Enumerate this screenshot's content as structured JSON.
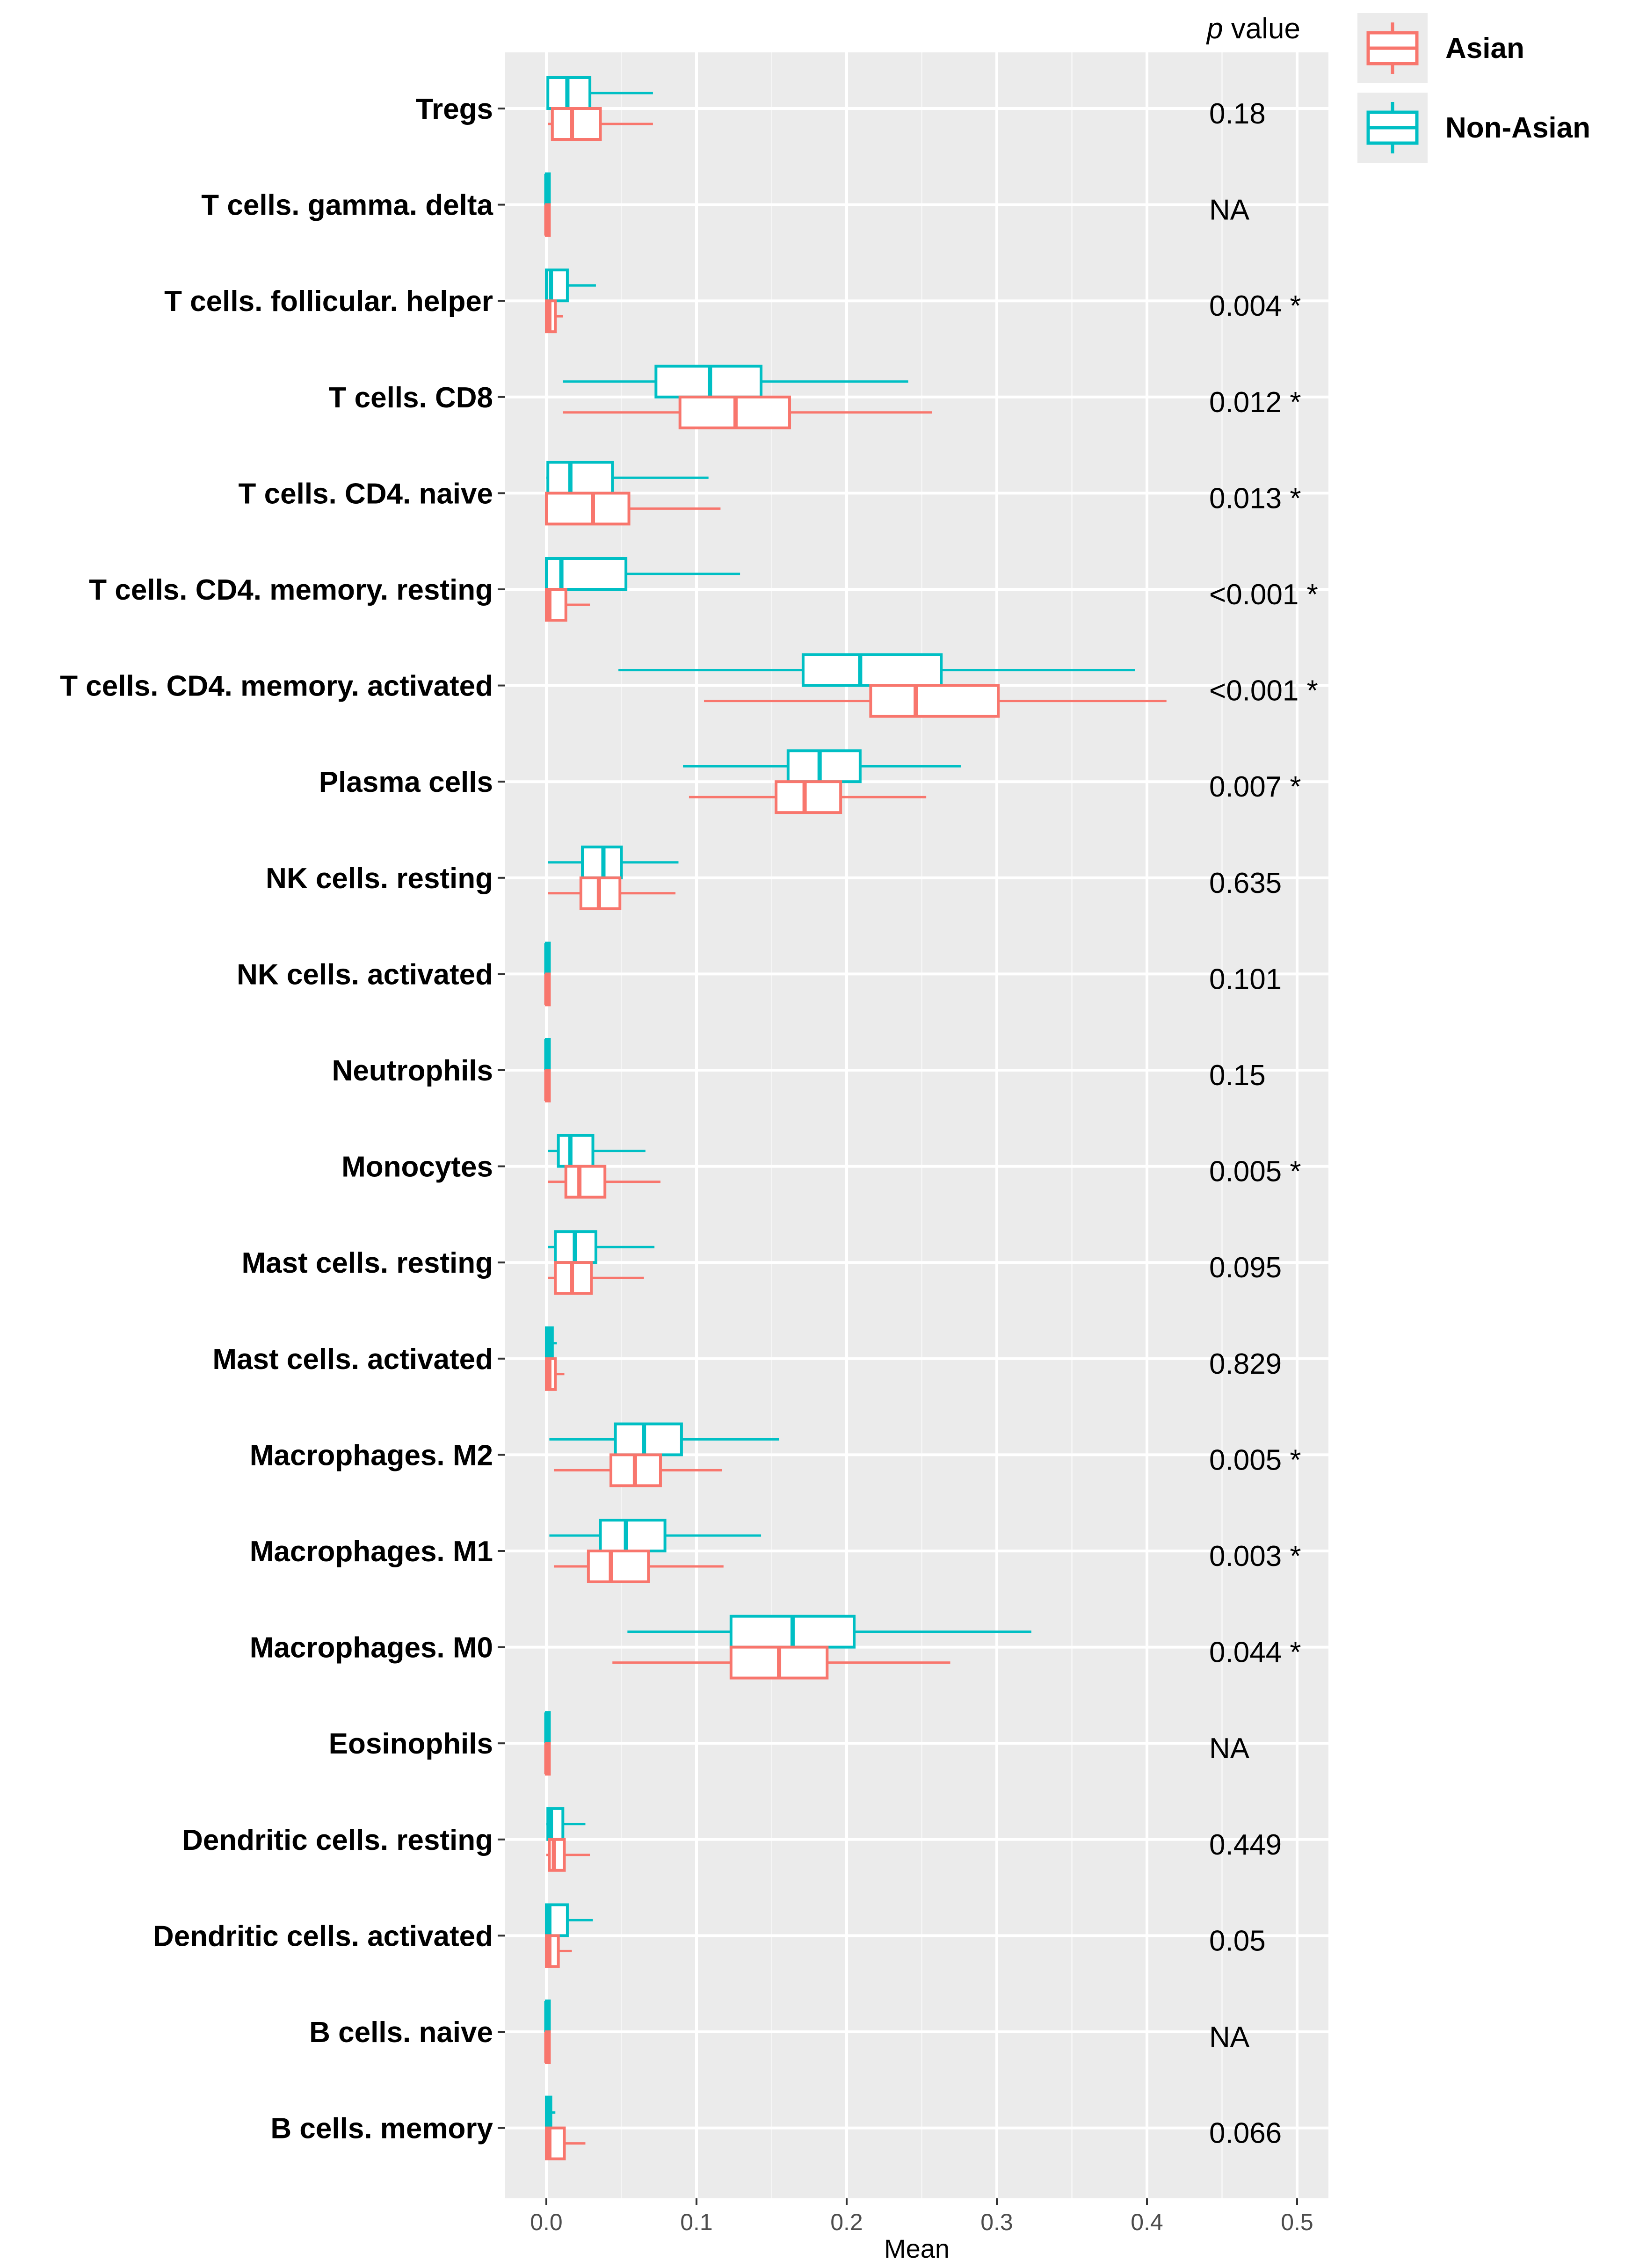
{
  "chart_data": {
    "type": "boxplot",
    "orientation": "horizontal",
    "xlabel": "Mean",
    "ylabel": "",
    "xlim": [
      -0.02,
      0.52
    ],
    "xticks": [
      0.0,
      0.1,
      0.2,
      0.3,
      0.4,
      0.5
    ],
    "xtick_labels": [
      "0.0",
      "0.1",
      "0.2",
      "0.3",
      "0.4",
      "0.5"
    ],
    "grid": true,
    "pvalue_header_italic": "p",
    "pvalue_header_rest": " value",
    "legend": {
      "position": "top-right",
      "entries": [
        {
          "name": "Asian",
          "color": "#F8766D"
        },
        {
          "name": "Non-Asian",
          "color": "#00BFC4"
        }
      ]
    },
    "series_colors": {
      "asian": "#F8766D",
      "nonasian": "#00BFC4"
    },
    "categories": [
      {
        "label": "Tregs",
        "pvalue": "0.18",
        "asian": [
          0.001,
          0.004,
          0.017,
          0.036,
          0.071
        ],
        "nonasian": [
          0.001,
          0.001,
          0.014,
          0.029,
          0.071
        ]
      },
      {
        "label": "T cells. gamma. delta",
        "pvalue": "NA",
        "asian": [
          0.0,
          0.0,
          0.0,
          0.002,
          0.002
        ],
        "nonasian": [
          0.0,
          0.0,
          0.0,
          0.002,
          0.002
        ]
      },
      {
        "label": "T cells. follicular. helper",
        "pvalue": "0.004 *",
        "asian": [
          0.0,
          0.0,
          0.002,
          0.006,
          0.011
        ],
        "nonasian": [
          0.0,
          0.0,
          0.003,
          0.014,
          0.033
        ]
      },
      {
        "label": "T cells. CD8",
        "pvalue": "0.012 *",
        "asian": [
          0.011,
          0.089,
          0.126,
          0.162,
          0.257
        ],
        "nonasian": [
          0.011,
          0.073,
          0.109,
          0.143,
          0.241
        ]
      },
      {
        "label": "T cells. CD4. naive",
        "pvalue": "0.013 *",
        "asian": [
          0.0,
          0.0,
          0.031,
          0.055,
          0.116
        ],
        "nonasian": [
          0.0,
          0.001,
          0.016,
          0.044,
          0.108
        ]
      },
      {
        "label": "T cells. CD4. memory. resting",
        "pvalue": "<0.001 *",
        "asian": [
          0.0,
          0.0,
          0.002,
          0.013,
          0.029
        ],
        "nonasian": [
          0.0,
          0.0,
          0.01,
          0.053,
          0.129
        ]
      },
      {
        "label": "T cells. CD4. memory. activated",
        "pvalue": "<0.001 *",
        "asian": [
          0.105,
          0.216,
          0.246,
          0.301,
          0.413
        ],
        "nonasian": [
          0.048,
          0.171,
          0.209,
          0.263,
          0.392
        ]
      },
      {
        "label": "Plasma cells",
        "pvalue": "0.007 *",
        "asian": [
          0.095,
          0.153,
          0.172,
          0.196,
          0.253
        ],
        "nonasian": [
          0.091,
          0.161,
          0.182,
          0.209,
          0.276
        ]
      },
      {
        "label": "NK cells. resting",
        "pvalue": "0.635",
        "asian": [
          0.001,
          0.023,
          0.035,
          0.049,
          0.086
        ],
        "nonasian": [
          0.001,
          0.024,
          0.038,
          0.05,
          0.088
        ]
      },
      {
        "label": "NK cells. activated",
        "pvalue": "0.101",
        "asian": [
          0.0,
          0.0,
          0.0,
          0.002,
          0.002
        ],
        "nonasian": [
          0.0,
          0.0,
          0.0,
          0.002,
          0.002
        ]
      },
      {
        "label": "Neutrophils",
        "pvalue": "0.15",
        "asian": [
          0.0,
          0.0,
          0.0,
          0.002,
          0.002
        ],
        "nonasian": [
          0.0,
          0.0,
          0.0,
          0.002,
          0.002
        ]
      },
      {
        "label": "Monocytes",
        "pvalue": "0.005 *",
        "asian": [
          0.001,
          0.013,
          0.022,
          0.039,
          0.076
        ],
        "nonasian": [
          0.001,
          0.008,
          0.016,
          0.031,
          0.066
        ]
      },
      {
        "label": "Mast cells. resting",
        "pvalue": "0.095",
        "asian": [
          0.001,
          0.006,
          0.017,
          0.03,
          0.065
        ],
        "nonasian": [
          0.001,
          0.006,
          0.019,
          0.033,
          0.072
        ]
      },
      {
        "label": "Mast cells. activated",
        "pvalue": "0.829",
        "asian": [
          0.0,
          0.0,
          0.002,
          0.006,
          0.012
        ],
        "nonasian": [
          0.0,
          0.0,
          0.002,
          0.004,
          0.007
        ]
      },
      {
        "label": "Macrophages. M2",
        "pvalue": "0.005 *",
        "asian": [
          0.005,
          0.043,
          0.059,
          0.076,
          0.117
        ],
        "nonasian": [
          0.002,
          0.046,
          0.065,
          0.09,
          0.155
        ]
      },
      {
        "label": "Macrophages. M1",
        "pvalue": "0.003 *",
        "asian": [
          0.005,
          0.028,
          0.043,
          0.068,
          0.118
        ],
        "nonasian": [
          0.002,
          0.036,
          0.053,
          0.079,
          0.143
        ]
      },
      {
        "label": "Macrophages. M0",
        "pvalue": "0.044 *",
        "asian": [
          0.044,
          0.123,
          0.155,
          0.187,
          0.269
        ],
        "nonasian": [
          0.054,
          0.123,
          0.164,
          0.205,
          0.323
        ]
      },
      {
        "label": "Eosinophils",
        "pvalue": "NA",
        "asian": [
          0.0,
          0.0,
          0.0,
          0.002,
          0.002
        ],
        "nonasian": [
          0.0,
          0.0,
          0.0,
          0.002,
          0.002
        ]
      },
      {
        "label": "Dendritic cells. resting",
        "pvalue": "0.449",
        "asian": [
          0.0,
          0.002,
          0.005,
          0.012,
          0.029
        ],
        "nonasian": [
          0.0,
          0.001,
          0.003,
          0.011,
          0.026
        ]
      },
      {
        "label": "Dendritic cells. activated",
        "pvalue": "0.05",
        "asian": [
          0.0,
          0.0,
          0.002,
          0.008,
          0.017
        ],
        "nonasian": [
          0.0,
          0.0,
          0.002,
          0.014,
          0.031
        ]
      },
      {
        "label": "B cells. naive",
        "pvalue": "NA",
        "asian": [
          0.0,
          0.0,
          0.0,
          0.002,
          0.002
        ],
        "nonasian": [
          0.0,
          0.0,
          0.0,
          0.002,
          0.002
        ]
      },
      {
        "label": "B cells. memory",
        "pvalue": "0.066",
        "asian": [
          0.0,
          0.0,
          0.002,
          0.012,
          0.026
        ],
        "nonasian": [
          0.0,
          0.0,
          0.001,
          0.003,
          0.006
        ]
      }
    ]
  }
}
